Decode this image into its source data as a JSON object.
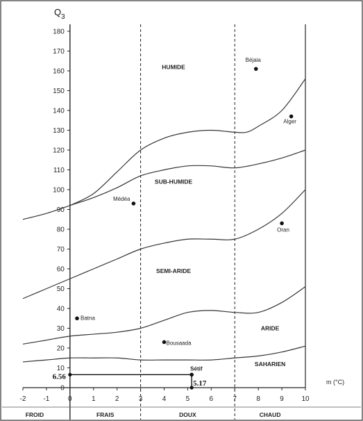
{
  "chart_data": {
    "type": "scatter",
    "title": "",
    "ylabel_main": "Q",
    "ylabel_sub": "3",
    "xlabel": "m (°C)",
    "xlim": [
      -2,
      10
    ],
    "ylim": [
      0,
      180
    ],
    "x_ticks": [
      -2,
      -1,
      0,
      1,
      2,
      3,
      4,
      5,
      6,
      7,
      8,
      9,
      10
    ],
    "y_ticks": [
      0,
      10,
      20,
      30,
      40,
      50,
      60,
      70,
      80,
      90,
      100,
      110,
      120,
      130,
      140,
      150,
      160,
      170,
      180
    ],
    "zones": [
      {
        "label": "HUMIDE",
        "x": 4.4,
        "y": 162
      },
      {
        "label": "SUB-HUMIDE",
        "x": 4.4,
        "y": 104
      },
      {
        "label": "SEMI-ARIDE",
        "x": 4.4,
        "y": 59
      },
      {
        "label": "ARIDE",
        "x": 8.5,
        "y": 30
      },
      {
        "label": "SAHARIEN",
        "x": 8.5,
        "y": 12
      }
    ],
    "boundaries": [
      {
        "name": "humide-subhumide",
        "points": [
          [
            0,
            92
          ],
          [
            1,
            98
          ],
          [
            2,
            109
          ],
          [
            3,
            120
          ],
          [
            4,
            126
          ],
          [
            5,
            129
          ],
          [
            6,
            130
          ],
          [
            7,
            129
          ],
          [
            7.5,
            129
          ],
          [
            8,
            132
          ],
          [
            9,
            140
          ],
          [
            10,
            156
          ]
        ]
      },
      {
        "name": "subhumide-semiaride",
        "points": [
          [
            -2,
            85
          ],
          [
            -1,
            88
          ],
          [
            0,
            92
          ],
          [
            1,
            96
          ],
          [
            2,
            101
          ],
          [
            3,
            107
          ],
          [
            4,
            110
          ],
          [
            5,
            112
          ],
          [
            6,
            112
          ],
          [
            7,
            111
          ],
          [
            8,
            113
          ],
          [
            9,
            116
          ],
          [
            10,
            120
          ]
        ]
      },
      {
        "name": "semiaride-aride",
        "points": [
          [
            -2,
            45
          ],
          [
            -1,
            50
          ],
          [
            0,
            55
          ],
          [
            1,
            60
          ],
          [
            2,
            65
          ],
          [
            3,
            70
          ],
          [
            4,
            73
          ],
          [
            5,
            75
          ],
          [
            6,
            75
          ],
          [
            7,
            75
          ],
          [
            8,
            80
          ],
          [
            9,
            88
          ],
          [
            10,
            100
          ]
        ]
      },
      {
        "name": "aride-saharien",
        "points": [
          [
            -2,
            22
          ],
          [
            -1,
            24
          ],
          [
            0,
            26
          ],
          [
            1,
            27
          ],
          [
            2,
            28
          ],
          [
            3,
            30
          ],
          [
            4,
            34
          ],
          [
            5,
            38
          ],
          [
            6,
            39
          ],
          [
            7,
            38
          ],
          [
            8,
            38
          ],
          [
            9,
            43
          ],
          [
            10,
            51
          ]
        ]
      },
      {
        "name": "saharien-lower",
        "points": [
          [
            -2,
            13
          ],
          [
            -1,
            14
          ],
          [
            0,
            15
          ],
          [
            1,
            15
          ],
          [
            2,
            15
          ],
          [
            3,
            14
          ],
          [
            4,
            14
          ],
          [
            5,
            14
          ],
          [
            6,
            14
          ],
          [
            7,
            15
          ],
          [
            8,
            16
          ],
          [
            9,
            18
          ],
          [
            10,
            21
          ]
        ]
      }
    ],
    "stations": [
      {
        "name": "Béjaia",
        "x": 7.9,
        "y": 161
      },
      {
        "name": "Alger",
        "x": 9.4,
        "y": 137
      },
      {
        "name": "Médéa",
        "x": 2.7,
        "y": 93
      },
      {
        "name": "Oran",
        "x": 9.0,
        "y": 83
      },
      {
        "name": "Batna",
        "x": 0.3,
        "y": 35
      },
      {
        "name": "Bousaada",
        "x": 4.0,
        "y": 23
      },
      {
        "name": "Sétif",
        "x": 5.17,
        "y": 6.56
      }
    ],
    "highlight": {
      "x": 5.17,
      "y": 6.56,
      "x_label": "5.17",
      "y_label": "6.56"
    },
    "vertical_lines": [
      {
        "x": 0,
        "style": "solid"
      },
      {
        "x": 3,
        "style": "dashed"
      },
      {
        "x": 7,
        "style": "dashed"
      }
    ],
    "bottom_labels": [
      {
        "label": "FROID",
        "x": -1.5
      },
      {
        "label": "FRAIS",
        "x": 1.5
      },
      {
        "label": "DOUX",
        "x": 5.0
      },
      {
        "label": "CHAUD",
        "x": 8.5
      }
    ],
    "grid": false
  }
}
